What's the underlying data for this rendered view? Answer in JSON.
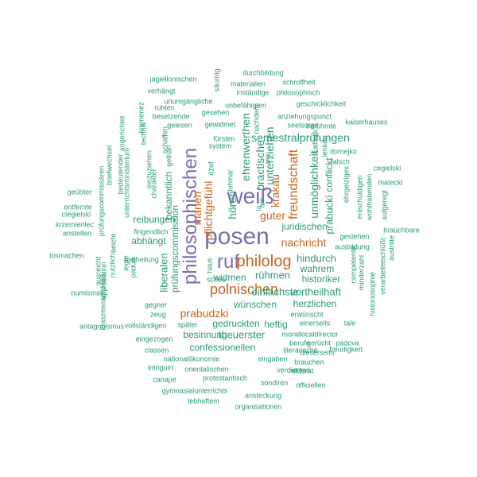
{
  "palette": {
    "purple": "#7a6fb0",
    "orange": "#c8641e",
    "green": "#2a9a78"
  },
  "words": [
    "posen",
    "philosophischen",
    "weiß",
    "ruf",
    "philolog",
    "polnischen",
    "nachricht",
    "prabudzki",
    "pflichtgefühl",
    "marien",
    "guter",
    "krakau",
    "freundschaft",
    "hören",
    "semestralprüfungen",
    "juridischen",
    "unmöglichkeit",
    "conflickt",
    "prabucki",
    "unterziehen",
    "practische",
    "ehrenwerthen",
    "hindurch",
    "wahrem",
    "historiker",
    "vortheilhaft",
    "herzlichen",
    "rühmen",
    "widmen",
    "einfachste",
    "wünschen",
    "theuerster",
    "heftig",
    "gedruckten",
    "besinnung",
    "confessionellen",
    "reibungen",
    "abhängt",
    "bekanntlich",
    "prüfungscommission",
    "liberalen",
    "durchbildung",
    "materialien",
    "inständige",
    "schroffheit",
    "philosophisch",
    "jagiellonischen",
    "verhängt",
    "unumgängliche",
    "säumig",
    "ruhten",
    "unbefähigten",
    "geschicklichkeit",
    "gesehen",
    "anziehungspunct",
    "besetzende",
    "seelsorge",
    "berühmte",
    "gelesen",
    "gewidmet",
    "kaiserhauses",
    "fürsten",
    "domejko",
    "system",
    "falsch",
    "ehrgeiziges",
    "kremenez",
    "angerichtet",
    "bedeutender",
    "technik",
    "einzuziehen",
    "schaffen",
    "charakter",
    "gethan",
    "unterrichtsministerium",
    "briefwechsel",
    "prüfungscommissären",
    "geübter",
    "entfernte",
    "ciegielski",
    "krzemieniec",
    "anstellen",
    "fingendlich",
    "losmachen",
    "cegielski",
    "matecki",
    "aufgeregt",
    "brauchbare",
    "austritte",
    "gestehen",
    "ausbildung",
    "entschuldigen",
    "wohlhabenden",
    "competente",
    "minderzahl",
    "historiosophie",
    "verarbeitetschlüßt",
    "nachdem",
    "katholik",
    "lenken",
    "ma",
    "lohmar",
    "özef",
    "am",
    "ia",
    "ausreicht",
    "nutzlich",
    "mittheilung",
    "approbation",
    "numismat",
    "legte",
    "padua",
    "haus",
    "scheu",
    "gegner",
    "zeug",
    "später",
    "vollständigen",
    "kraszewskischlüß",
    "beicht",
    "antagonismus",
    "eingezogen",
    "classen",
    "erwünscht",
    "einerseits",
    "tale",
    "morallocaldirector",
    "berufe",
    "gerücht",
    "padova",
    "dieserseits",
    "nationalökonomie",
    "eingaben",
    "brauchen",
    "verdientes",
    "rektorat",
    "intriguirt",
    "orientalischen",
    "literarische",
    "freudigkeit",
    "canapé",
    "protestantisch",
    "sondiren",
    "officiellen",
    "gymnasialunterrichts",
    "ansteckung",
    "lebhaftem",
    "organisationen"
  ]
}
